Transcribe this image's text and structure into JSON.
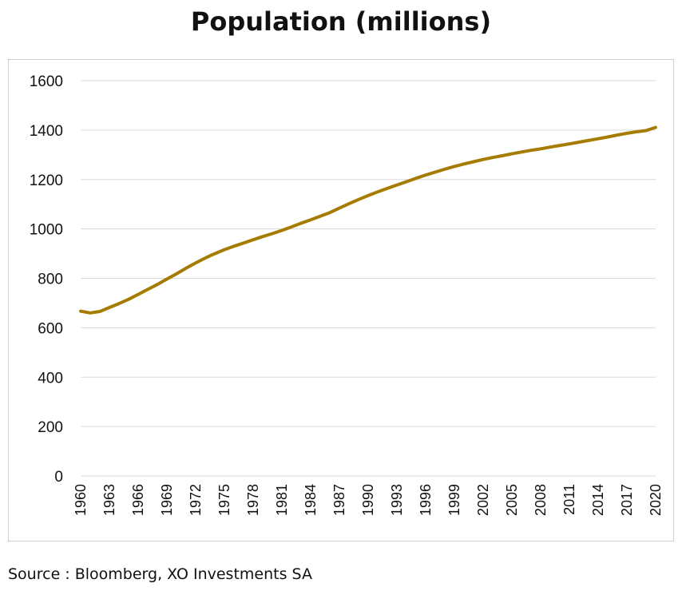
{
  "title": "Population (millions)",
  "source": "Source : Bloomberg, XO Investments SA",
  "colors": {
    "line": "#a67c00",
    "grid": "#d9d9d9",
    "text": "#111111"
  },
  "chart_data": {
    "type": "line",
    "title": "Population (millions)",
    "xlabel": "",
    "ylabel": "",
    "ylim": [
      0,
      1600
    ],
    "yticks": [
      0,
      200,
      400,
      600,
      800,
      1000,
      1200,
      1400,
      1600
    ],
    "xticks": [
      "1960",
      "1963",
      "1966",
      "1969",
      "1972",
      "1975",
      "1978",
      "1981",
      "1984",
      "1987",
      "1990",
      "1993",
      "1996",
      "1999",
      "2002",
      "2005",
      "2008",
      "2011",
      "2014",
      "2017",
      "2020"
    ],
    "grid": true,
    "legend": "none",
    "series": [
      {
        "x": [
          1960,
          1961,
          1962,
          1963,
          1964,
          1965,
          1966,
          1967,
          1968,
          1969,
          1970,
          1971,
          1972,
          1973,
          1974,
          1975,
          1976,
          1977,
          1978,
          1979,
          1980,
          1981,
          1982,
          1983,
          1984,
          1985,
          1986,
          1987,
          1988,
          1989,
          1990,
          1991,
          1992,
          1993,
          1994,
          1995,
          1996,
          1997,
          1998,
          1999,
          2000,
          2001,
          2002,
          2003,
          2004,
          2005,
          2006,
          2007,
          2008,
          2009,
          2010,
          2011,
          2012,
          2013,
          2014,
          2015,
          2016,
          2017,
          2018,
          2019,
          2020
        ],
        "values": [
          667,
          660,
          666,
          682,
          698,
          715,
          735,
          755,
          775,
          797,
          818,
          841,
          862,
          882,
          900,
          916,
          930,
          943,
          956,
          969,
          981,
          994,
          1008,
          1023,
          1037,
          1051,
          1066,
          1084,
          1102,
          1119,
          1135,
          1150,
          1164,
          1178,
          1191,
          1205,
          1218,
          1230,
          1242,
          1253,
          1263,
          1272,
          1281,
          1289,
          1296,
          1304,
          1311,
          1318,
          1324,
          1331,
          1338,
          1344,
          1351,
          1358,
          1365,
          1372,
          1380,
          1387,
          1393,
          1398,
          1411
        ]
      }
    ]
  }
}
